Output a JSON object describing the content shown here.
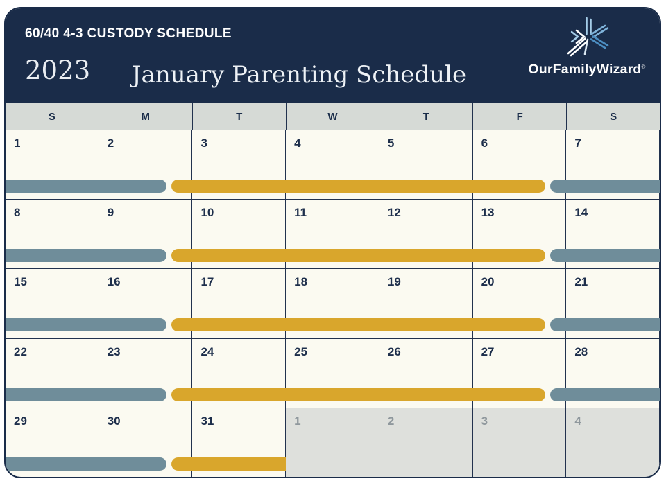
{
  "header": {
    "kicker": "60/40 4-3 CUSTODY SCHEDULE",
    "year": "2023",
    "title": "January Parenting Schedule",
    "brand": "OurFamilyWizard",
    "registered_mark": "®"
  },
  "colors": {
    "navy": "#1a2c49",
    "cream": "#fbfaf1",
    "slate": "#6f8d9a",
    "gold": "#d9a62c",
    "day_header_bg": "#d6dad6",
    "next_month_bg": "#dee0dc",
    "next_month_text": "#8f989d",
    "grid_line": "#22324e",
    "logo_light_blue": "#a5cde9",
    "logo_mid_blue": "#4c8ec2",
    "logo_white": "#ffffff"
  },
  "calendar": {
    "day_headers": [
      "S",
      "M",
      "T",
      "W",
      "T",
      "F",
      "S"
    ],
    "weeks": [
      {
        "days": [
          {
            "n": "1"
          },
          {
            "n": "2"
          },
          {
            "n": "3"
          },
          {
            "n": "4"
          },
          {
            "n": "5"
          },
          {
            "n": "6"
          },
          {
            "n": "7"
          }
        ],
        "bars": [
          {
            "color": "slate",
            "start_pct": 0,
            "end_pct": 24.6,
            "caps": "right"
          },
          {
            "color": "gold",
            "start_pct": 25.3,
            "end_pct": 82.5,
            "caps": "both"
          },
          {
            "color": "slate",
            "start_pct": 83.2,
            "end_pct": 100,
            "caps": "left"
          }
        ]
      },
      {
        "days": [
          {
            "n": "8"
          },
          {
            "n": "9"
          },
          {
            "n": "10"
          },
          {
            "n": "11"
          },
          {
            "n": "12"
          },
          {
            "n": "13"
          },
          {
            "n": "14"
          }
        ],
        "bars": [
          {
            "color": "slate",
            "start_pct": 0,
            "end_pct": 24.6,
            "caps": "right"
          },
          {
            "color": "gold",
            "start_pct": 25.3,
            "end_pct": 82.5,
            "caps": "both"
          },
          {
            "color": "slate",
            "start_pct": 83.2,
            "end_pct": 100,
            "caps": "left"
          }
        ]
      },
      {
        "days": [
          {
            "n": "15"
          },
          {
            "n": "16"
          },
          {
            "n": "17"
          },
          {
            "n": "18"
          },
          {
            "n": "19"
          },
          {
            "n": "20"
          },
          {
            "n": "21"
          }
        ],
        "bars": [
          {
            "color": "slate",
            "start_pct": 0,
            "end_pct": 24.6,
            "caps": "right"
          },
          {
            "color": "gold",
            "start_pct": 25.3,
            "end_pct": 82.5,
            "caps": "both"
          },
          {
            "color": "slate",
            "start_pct": 83.2,
            "end_pct": 100,
            "caps": "left"
          }
        ]
      },
      {
        "days": [
          {
            "n": "22"
          },
          {
            "n": "23"
          },
          {
            "n": "24"
          },
          {
            "n": "25"
          },
          {
            "n": "26"
          },
          {
            "n": "27"
          },
          {
            "n": "28"
          }
        ],
        "bars": [
          {
            "color": "slate",
            "start_pct": 0,
            "end_pct": 24.6,
            "caps": "right"
          },
          {
            "color": "gold",
            "start_pct": 25.3,
            "end_pct": 82.5,
            "caps": "both"
          },
          {
            "color": "slate",
            "start_pct": 83.2,
            "end_pct": 100,
            "caps": "left"
          }
        ]
      },
      {
        "days": [
          {
            "n": "29"
          },
          {
            "n": "30"
          },
          {
            "n": "31"
          },
          {
            "n": "1",
            "muted": true
          },
          {
            "n": "2",
            "muted": true
          },
          {
            "n": "3",
            "muted": true
          },
          {
            "n": "4",
            "muted": true
          }
        ],
        "bars": [
          {
            "color": "slate",
            "start_pct": 0,
            "end_pct": 24.6,
            "caps": "right"
          },
          {
            "color": "gold",
            "start_pct": 25.3,
            "end_pct": 42.86,
            "caps": "left"
          }
        ]
      }
    ]
  }
}
